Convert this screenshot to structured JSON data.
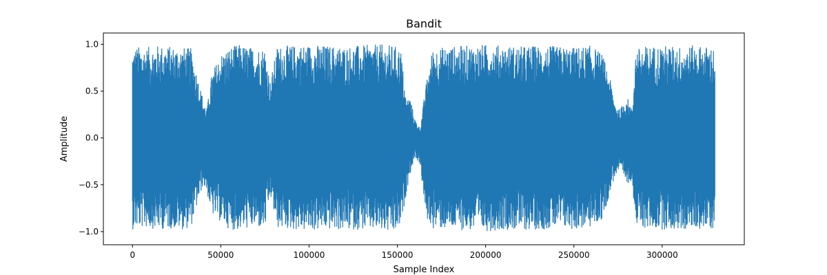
{
  "chart_data": {
    "type": "line",
    "title": "Bandit",
    "xlabel": "Sample Index",
    "ylabel": "Amplitude",
    "xlim": [
      -16500,
      346500
    ],
    "ylim": [
      -1.14,
      1.12
    ],
    "xticks": [
      0,
      50000,
      100000,
      150000,
      200000,
      250000,
      300000
    ],
    "yticks": [
      1.0,
      0.5,
      0.0,
      -0.5,
      -1.0
    ],
    "xtick_labels": [
      "0",
      "50000",
      "100000",
      "150000",
      "200000",
      "250000",
      "300000"
    ],
    "ytick_labels": [
      "1.0",
      "0.5",
      "0.0",
      "−0.5",
      "−1.0"
    ],
    "grid": false,
    "series": [
      {
        "color": "#1f77b4",
        "n_samples": 330000,
        "envelope": {
          "x": [
            0,
            2000,
            8000,
            15000,
            22000,
            28000,
            33000,
            37000,
            40000,
            42000,
            45000,
            50000,
            55000,
            60000,
            65000,
            70000,
            75000,
            78000,
            82000,
            90000,
            100000,
            110000,
            120000,
            130000,
            140000,
            148000,
            152000,
            155000,
            157000,
            160000,
            163000,
            166000,
            170000,
            180000,
            190000,
            200000,
            210000,
            220000,
            230000,
            240000,
            250000,
            260000,
            266000,
            270000,
            273000,
            276000,
            280000,
            283000,
            285000,
            290000,
            300000,
            310000,
            320000,
            330000
          ],
          "max": [
            0.95,
            0.98,
            0.97,
            0.99,
            0.98,
            0.97,
            0.96,
            0.65,
            0.42,
            0.3,
            0.7,
            0.9,
            0.97,
            1.0,
            0.98,
            0.96,
            0.97,
            0.6,
            0.98,
            0.99,
            1.0,
            0.99,
            0.98,
            0.99,
            1.0,
            0.99,
            0.95,
            0.4,
            0.45,
            0.2,
            0.1,
            0.55,
            0.96,
            0.98,
            0.99,
            1.0,
            0.99,
            0.98,
            0.99,
            0.98,
            0.97,
            0.99,
            0.9,
            0.68,
            0.4,
            0.3,
            0.45,
            0.3,
            0.95,
            0.98,
            0.99,
            0.98,
            0.99,
            0.97
          ],
          "min": [
            -0.98,
            -0.97,
            -0.96,
            -0.98,
            -0.97,
            -0.98,
            -0.96,
            -0.7,
            -0.5,
            -0.58,
            -0.82,
            -0.9,
            -0.98,
            -0.99,
            -0.97,
            -0.96,
            -0.98,
            -0.62,
            -0.97,
            -0.98,
            -1.0,
            -0.98,
            -0.99,
            -0.98,
            -1.0,
            -1.03,
            -0.95,
            -0.6,
            -0.4,
            -0.2,
            -0.3,
            -0.85,
            -0.97,
            -0.98,
            -0.99,
            -1.0,
            -0.98,
            -0.99,
            -0.98,
            -0.97,
            -0.98,
            -0.96,
            -0.88,
            -0.62,
            -0.42,
            -0.35,
            -0.5,
            -0.45,
            -0.95,
            -0.97,
            -0.98,
            -0.99,
            -0.97,
            -0.98
          ]
        }
      }
    ]
  }
}
